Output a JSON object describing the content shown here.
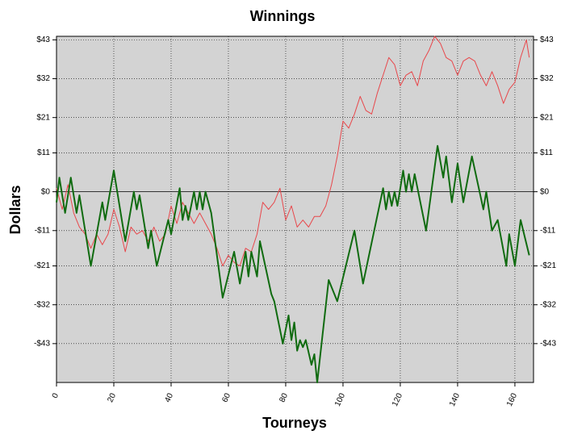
{
  "chart_data": {
    "type": "line",
    "title": "Winnings",
    "x_label": "Tourneys",
    "y_label": "Dollars",
    "xlim": [
      0,
      166.5
    ],
    "xticks": [
      0,
      20,
      40,
      60,
      80,
      100,
      120,
      140,
      160
    ],
    "ylim": [
      -54,
      44
    ],
    "yticks": [
      {
        "value": -43,
        "label": "-$43"
      },
      {
        "value": -32,
        "label": "-$32"
      },
      {
        "value": -21,
        "label": "-$21"
      },
      {
        "value": -11,
        "label": "-$11"
      },
      {
        "value": 0,
        "label": "$0"
      },
      {
        "value": 11,
        "label": "$11"
      },
      {
        "value": 21,
        "label": "$21"
      },
      {
        "value": 32,
        "label": "$32"
      },
      {
        "value": 43,
        "label": "$43"
      }
    ],
    "grid": true,
    "series": [
      {
        "color": "#e8474b",
        "width": 1,
        "x": [
          0,
          2,
          4,
          6,
          8,
          10,
          12,
          14,
          16,
          18,
          20,
          22,
          24,
          26,
          28,
          30,
          32,
          34,
          36,
          38,
          40,
          42,
          44,
          46,
          48,
          50,
          52,
          54,
          56,
          58,
          60,
          62,
          64,
          66,
          68,
          70,
          72,
          74,
          76,
          78,
          80,
          82,
          84,
          86,
          88,
          90,
          92,
          94,
          96,
          98,
          100,
          102,
          104,
          106,
          108,
          110,
          112,
          114,
          116,
          118,
          120,
          122,
          124,
          126,
          128,
          130,
          132,
          134,
          136,
          138,
          140,
          142,
          144,
          146,
          148,
          150,
          152,
          154,
          156,
          158,
          160,
          162,
          164,
          165
        ],
        "values": [
          1,
          -5,
          2,
          -6,
          -10,
          -12,
          -16,
          -12,
          -15,
          -12,
          -5,
          -10,
          -17,
          -10,
          -12,
          -11,
          -14,
          -10,
          -14,
          -12,
          -4,
          -9,
          -3,
          -6,
          -9,
          -6,
          -9,
          -12,
          -16,
          -21,
          -18,
          -20,
          -21,
          -16,
          -17,
          -12,
          -3,
          -5,
          -3,
          1,
          -8,
          -4,
          -10,
          -8,
          -10,
          -7,
          -7,
          -4,
          2,
          10,
          20,
          18,
          22,
          27,
          23,
          22,
          28,
          33,
          38,
          36,
          30,
          33,
          34,
          30,
          37,
          40,
          44,
          42,
          38,
          37,
          33,
          37,
          38,
          37,
          33,
          30,
          34,
          30,
          25,
          29,
          31,
          38,
          43,
          38
        ]
      },
      {
        "color": "#106b10",
        "width": 2,
        "x": [
          0,
          1,
          3,
          5,
          7,
          8,
          12,
          16,
          17,
          20,
          24,
          27,
          28,
          29,
          32,
          33,
          35,
          39,
          40,
          43,
          44,
          45,
          46,
          48,
          49,
          50,
          51,
          52,
          54,
          58,
          62,
          64,
          66,
          67,
          68,
          70,
          71,
          75,
          76,
          79,
          81,
          82,
          83,
          84,
          85,
          86,
          87,
          89,
          90,
          91,
          95,
          98,
          104,
          107,
          114,
          115,
          116,
          117,
          118,
          119,
          121,
          122,
          123,
          124,
          125,
          129,
          133,
          135,
          136,
          138,
          140,
          142,
          145,
          149,
          150,
          152,
          154,
          157,
          158,
          160,
          162,
          165
        ],
        "values": [
          -3,
          4,
          -6,
          4,
          -6,
          -1,
          -21,
          -3,
          -8,
          6,
          -14,
          0,
          -5,
          -1,
          -16,
          -11,
          -21,
          -8,
          -12,
          1,
          -8,
          -4,
          -8,
          0,
          -5,
          0,
          -5,
          0,
          -6,
          -30,
          -17,
          -26,
          -17,
          -24,
          -17,
          -24,
          -14,
          -29,
          -31,
          -43,
          -35,
          -42,
          -37,
          -45,
          -42,
          -44,
          -42,
          -49,
          -46,
          -54,
          -25,
          -31,
          -11,
          -26,
          1,
          -5,
          0,
          -4,
          0,
          -4,
          6,
          0,
          5,
          0,
          5,
          -11,
          13,
          4,
          10,
          -3,
          8,
          -3,
          10,
          -5,
          0,
          -11,
          -8,
          -21,
          -12,
          -21,
          -8,
          -18
        ]
      }
    ]
  }
}
